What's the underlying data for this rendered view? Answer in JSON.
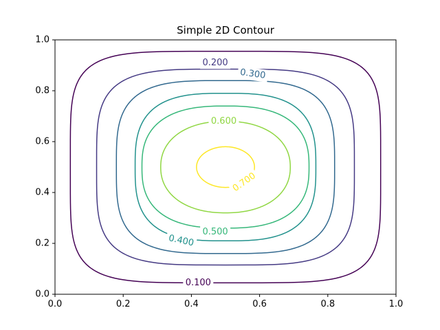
{
  "chart_data": {
    "type": "contour",
    "title": "Simple 2D Contour",
    "xlabel": "",
    "ylabel": "",
    "xlim": [
      0,
      1
    ],
    "ylim": [
      0,
      1
    ],
    "x_ticks": [
      "0.0",
      "0.2",
      "0.4",
      "0.6",
      "0.8",
      "1.0"
    ],
    "y_ticks": [
      "0.0",
      "0.2",
      "0.4",
      "0.6",
      "0.8",
      "1.0"
    ],
    "grid": false,
    "levels": [
      {
        "label": "0.100",
        "value": 0.1,
        "color": "#440154"
      },
      {
        "label": "0.200",
        "value": 0.2,
        "color": "#443983"
      },
      {
        "label": "0.300",
        "value": 0.3,
        "color": "#31688e"
      },
      {
        "label": "0.400",
        "value": 0.4,
        "color": "#21918c"
      },
      {
        "label": "0.500",
        "value": 0.5,
        "color": "#35b779"
      },
      {
        "label": "0.600",
        "value": 0.6,
        "color": "#90d743"
      },
      {
        "label": "0.700",
        "value": 0.7,
        "color": "#fde725"
      }
    ],
    "contours": [
      {
        "level": "0.100",
        "cx": 0.5,
        "cy": 0.5,
        "rx": 0.455,
        "ry": 0.455,
        "p": 5.0
      },
      {
        "level": "0.200",
        "cx": 0.5,
        "cy": 0.5,
        "rx": 0.378,
        "ry": 0.385,
        "p": 4.0
      },
      {
        "level": "0.300",
        "cx": 0.5,
        "cy": 0.5,
        "rx": 0.32,
        "ry": 0.34,
        "p": 3.5
      },
      {
        "level": "0.400",
        "cx": 0.5,
        "cy": 0.5,
        "rx": 0.265,
        "ry": 0.29,
        "p": 3.0
      },
      {
        "level": "0.500",
        "cx": 0.5,
        "cy": 0.5,
        "rx": 0.245,
        "ry": 0.24,
        "p": 2.6
      },
      {
        "level": "0.600",
        "cx": 0.5,
        "cy": 0.5,
        "rx": 0.19,
        "ry": 0.18,
        "p": 2.2
      },
      {
        "level": "0.700",
        "cx": 0.5,
        "cy": 0.5,
        "rx": 0.085,
        "ry": 0.08,
        "p": 2.0
      }
    ],
    "contour_labels": [
      {
        "text": "0.100",
        "x": 0.42,
        "y": 0.045,
        "angle": 0,
        "color": "#440154"
      },
      {
        "text": "0.200",
        "x": 0.47,
        "y": 0.91,
        "angle": 0,
        "color": "#443983"
      },
      {
        "text": "0.300",
        "x": 0.58,
        "y": 0.865,
        "angle": 8,
        "color": "#31688e"
      },
      {
        "text": "0.400",
        "x": 0.37,
        "y": 0.21,
        "angle": 12,
        "color": "#21918c"
      },
      {
        "text": "0.500",
        "x": 0.47,
        "y": 0.245,
        "angle": 0,
        "color": "#35b779"
      },
      {
        "text": "0.600",
        "x": 0.495,
        "y": 0.68,
        "angle": 0,
        "color": "#90d743"
      },
      {
        "text": "0.700",
        "x": 0.555,
        "y": 0.44,
        "angle": -35,
        "color": "#fde725"
      }
    ]
  }
}
